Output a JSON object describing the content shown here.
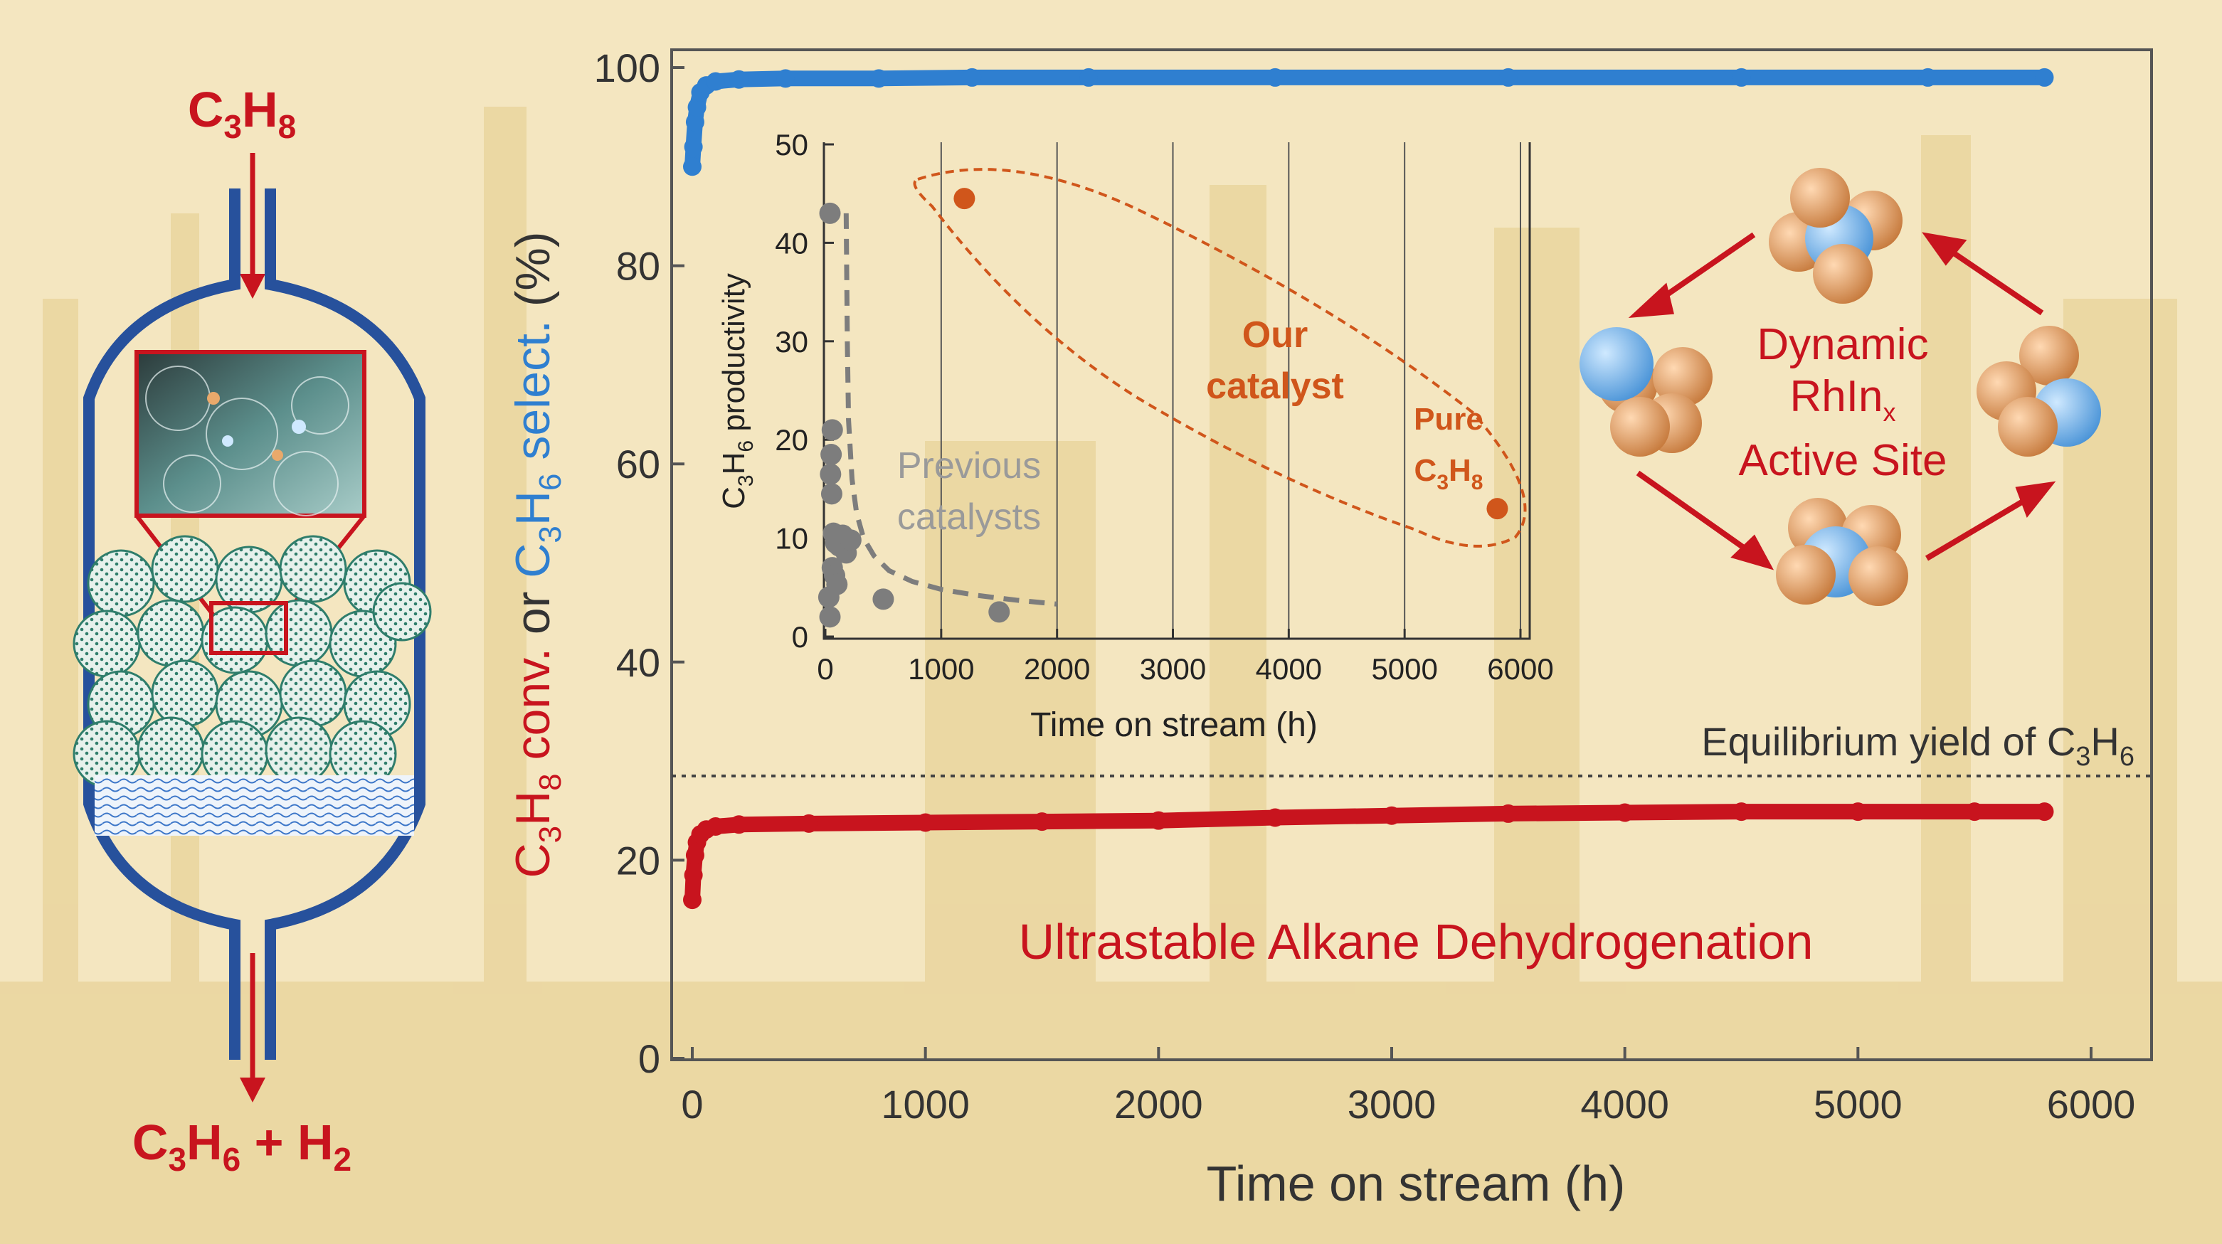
{
  "reactor": {
    "inlet_label": {
      "base": "C",
      "sub1": "3",
      "mid": "H",
      "sub2": "8"
    },
    "outlet_label": {
      "base": "C",
      "sub1": "3",
      "mid": "H",
      "sub2": "6",
      "tail": " + H",
      "sub3": "2"
    }
  },
  "colors": {
    "red": "#c8141e",
    "blue": "#2f7fd0",
    "orange": "#d0561b",
    "gray": "#7d7d7d",
    "reactor_blue": "#27519c",
    "background": "#f4e6c0"
  },
  "chart_data": [
    {
      "type": "scatter",
      "xlabel": "Time on stream (h)",
      "ylabel_parts": {
        "a": "C",
        "a_sub": "3",
        "b": "H",
        "b_sub": "8",
        "c": " conv.",
        "d": " or ",
        "e": "C",
        "e_sub": "3",
        "f": "H",
        "f_sub": "6",
        "g": " select.",
        "h": " (%)"
      },
      "xlim": [
        0,
        6000
      ],
      "ylim": [
        0,
        100
      ],
      "xticks": [
        0,
        1000,
        2000,
        3000,
        4000,
        5000,
        6000
      ],
      "yticks": [
        0,
        20,
        40,
        60,
        80,
        100
      ],
      "series": [
        {
          "color": "#2f7fd0",
          "x": [
            0,
            5,
            12,
            20,
            35,
            60,
            100,
            200,
            400,
            800,
            1200,
            1700,
            2500,
            3500,
            4500,
            5300,
            5800
          ],
          "y": [
            90,
            92,
            94.5,
            96,
            97.5,
            98.2,
            98.6,
            98.8,
            98.9,
            98.9,
            99.0,
            99.0,
            99.0,
            99.0,
            99.0,
            99.0,
            99.0
          ]
        },
        {
          "color": "#c8141e",
          "x": [
            0,
            5,
            12,
            20,
            35,
            60,
            100,
            200,
            500,
            1000,
            1500,
            2000,
            2500,
            3000,
            3500,
            4000,
            4500,
            5000,
            5500,
            5800
          ],
          "y": [
            16,
            18.5,
            20.5,
            21.8,
            22.6,
            23.1,
            23.4,
            23.6,
            23.7,
            23.8,
            23.9,
            24.0,
            24.3,
            24.5,
            24.7,
            24.8,
            24.9,
            24.9,
            24.9,
            24.9
          ]
        }
      ],
      "annotations": {
        "equilibrium": {
          "y": 28.5,
          "text": "Equilibrium yield of C",
          "sub1": "3",
          "text2": "H",
          "sub2": "6"
        },
        "headline": "Ultrastable Alkane Dehydrogenation"
      }
    },
    {
      "type": "scatter",
      "xlabel": "Time on stream (h)",
      "ylabel_parts": {
        "a": "C",
        "a_sub": "3",
        "b": "H",
        "b_sub": "6",
        "c": " productivity"
      },
      "xlim": [
        0,
        6100
      ],
      "ylim": [
        0,
        50
      ],
      "xticks": [
        0,
        1000,
        2000,
        3000,
        4000,
        5000,
        6000
      ],
      "yticks": [
        0,
        10,
        20,
        30,
        40,
        50
      ],
      "series": [
        {
          "color": "#7d7d7d",
          "x": [
            40,
            60,
            50,
            45,
            55,
            70,
            90,
            120,
            150,
            180,
            220,
            60,
            80,
            100,
            30,
            40,
            500,
            1500
          ],
          "y": [
            43,
            21,
            18.5,
            16.5,
            14.5,
            10.5,
            9.5,
            9.2,
            10.3,
            8.5,
            9.8,
            7,
            6.2,
            5.3,
            4,
            2,
            3.8,
            2.5
          ]
        },
        {
          "color": "#d0561b",
          "x": [
            1200,
            5800
          ],
          "y": [
            44.5,
            13
          ]
        }
      ],
      "trend_curve": {
        "x": [
          180,
          190,
          200,
          230,
          270,
          330,
          420,
          550,
          750,
          1000,
          1300,
          1650,
          2000
        ],
        "y": [
          43,
          30,
          22,
          16,
          12.5,
          10,
          8.2,
          6.7,
          5.6,
          4.8,
          4.2,
          3.7,
          3.3
        ]
      },
      "labels": {
        "previous": [
          "Previous",
          "catalysts"
        ],
        "ours": [
          "Our",
          "catalyst"
        ],
        "pure": {
          "line1": "Pure",
          "base": "C",
          "sub1": "3",
          "mid": "H",
          "sub2": "8"
        }
      }
    }
  ],
  "active_site": {
    "line1": "Dynamic",
    "line2_base": "RhIn",
    "line2_sub": "x",
    "line3": "Active Site"
  }
}
